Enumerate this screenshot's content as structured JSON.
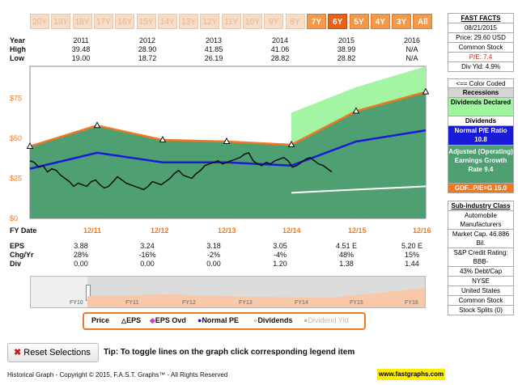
{
  "tabs": [
    {
      "label": "20Y",
      "state": "off"
    },
    {
      "label": "19Y",
      "state": "off"
    },
    {
      "label": "18Y",
      "state": "off"
    },
    {
      "label": "17Y",
      "state": "off"
    },
    {
      "label": "16Y",
      "state": "off"
    },
    {
      "label": "15Y",
      "state": "off"
    },
    {
      "label": "14Y",
      "state": "off"
    },
    {
      "label": "13Y",
      "state": "off"
    },
    {
      "label": "12Y",
      "state": "off"
    },
    {
      "label": "11Y",
      "state": "off"
    },
    {
      "label": "10Y",
      "state": "off"
    },
    {
      "label": "9Y",
      "state": "off"
    },
    {
      "label": "8Y",
      "state": "off"
    },
    {
      "label": "7Y",
      "state": "on"
    },
    {
      "label": "6Y",
      "state": "selected"
    },
    {
      "label": "5Y",
      "state": "on"
    },
    {
      "label": "4Y",
      "state": "on"
    },
    {
      "label": "3Y",
      "state": "on"
    },
    {
      "label": "All",
      "state": "on"
    }
  ],
  "summary": {
    "year_label": "Year",
    "high_label": "High",
    "low_label": "Low",
    "years": [
      "2011",
      "2012",
      "2013",
      "2014",
      "2015",
      "2016"
    ],
    "high": [
      "39.48",
      "28.90",
      "41.85",
      "41.06",
      "38.99",
      "N/A"
    ],
    "low": [
      "19.00",
      "18.72",
      "26.19",
      "28.82",
      "28.82",
      "N/A"
    ]
  },
  "chart_data": {
    "type": "line",
    "x": [
      "FY Date",
      "12/11",
      "12/12",
      "12/13",
      "12/14",
      "12/15",
      "12/16"
    ],
    "y_ticks": [
      "$75",
      "$50",
      "$25",
      "$0"
    ],
    "ylim": [
      0,
      95
    ],
    "series": [
      {
        "name": "EPS",
        "values": [
          45,
          58,
          49,
          48,
          46,
          67,
          79
        ]
      },
      {
        "name": "Normal PE",
        "values": [
          31,
          41,
          35,
          35,
          33,
          48,
          55
        ]
      },
      {
        "name": "Dividends",
        "values": [
          null,
          null,
          null,
          null,
          16,
          18,
          20
        ]
      }
    ],
    "price": [
      36,
      35,
      32,
      33,
      29,
      31,
      30,
      27,
      25,
      23,
      20,
      22,
      21,
      20,
      23,
      24,
      21,
      19,
      20,
      23,
      26,
      24,
      22,
      21,
      20,
      19,
      18,
      20,
      23,
      22,
      21,
      23,
      25,
      28,
      30,
      27,
      26,
      25,
      28,
      30,
      33,
      34,
      35,
      36,
      34,
      35,
      36,
      37,
      38,
      40,
      41,
      36,
      34,
      33,
      35,
      34,
      36,
      37,
      38,
      36,
      32,
      33,
      35,
      37,
      38,
      36,
      34,
      33,
      31,
      29
    ]
  },
  "per_year": {
    "eps_label": "EPS",
    "chg_label": "Chg/Yr",
    "div_label": "Div",
    "eps": [
      "3.88",
      "3.24",
      "3.18",
      "3.05",
      "4.51 E",
      "5.20 E"
    ],
    "chg": [
      "28%",
      "-16%",
      "-2%",
      "-4%",
      "48%",
      "15%"
    ],
    "div": [
      "0.00",
      "0.00",
      "0.00",
      "1.20",
      "1.38",
      "1.44"
    ]
  },
  "navigator": {
    "labels": [
      "FY10",
      "FY11",
      "FY12",
      "FY13",
      "FY14",
      "FY15",
      "FY16"
    ]
  },
  "legend": {
    "price": "Price",
    "eps": "EPS",
    "eps_ovd": "EPS Ovd",
    "normal_pe": "Normal PE",
    "dividends": "Dividends",
    "div_yld": "Dividend Yld"
  },
  "fast_facts": {
    "title": "FAST FACTS",
    "date": "08/21/2015",
    "price": "Price: 29.60 USD",
    "stock_type": "Common Stock",
    "pe": "P/E: 7.4",
    "div_yld": "Div Yld: 4.9%",
    "color_coded": "<== Color Coded",
    "recessions": "Recessions",
    "dividends_declared": "Dividends Declared",
    "dividends": "Dividends",
    "normal_pe": "Normal P/E Ratio 10.8",
    "adjusted": "Adjusted (Operating) Earnings Growth Rate 9.4",
    "gdf": "GDF...P/E=G 15.0"
  },
  "company": {
    "subindustry_label": "Sub-industry Class",
    "subindustry": "Automobile Manufacturers",
    "market_cap": "Market Cap. 46.886 Bil.",
    "credit": "S&P Credit Rating: BBB-",
    "debt": "43% Debt/Cap",
    "exchange": "NYSE",
    "country": "United States",
    "stock_type": "Common Stock",
    "splits": "Stock Splits (0)"
  },
  "footer": {
    "reset": "Reset Selections",
    "tip": "Tip: To toggle lines on the graph click corresponding legend item",
    "copyright": "Historical Graph - Copyright © 2015, F.A.S.T. Graphs™ - All Rights Reserved",
    "site": "www.fastgraphs.com"
  },
  "colors": {
    "area": "#4e9f72",
    "forecast": "#9ff59f",
    "eps": "#f07820",
    "normal_pe": "#1a1ad8",
    "price": "#111111",
    "dividend": "#ffffff"
  }
}
